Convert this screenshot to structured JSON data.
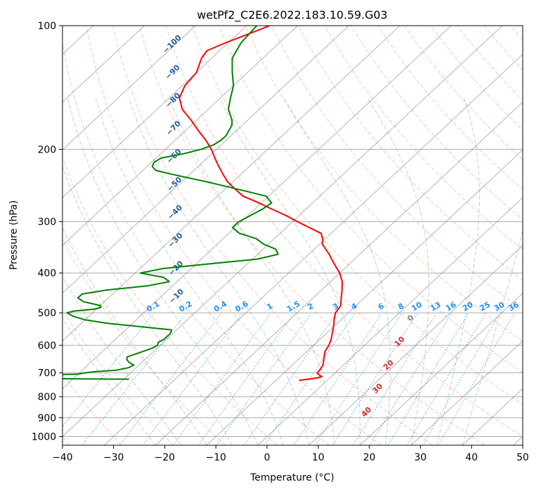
{
  "chart_data": {
    "type": "skewt",
    "title": "wetPf2_C2E6.2022.183.10.59.G03",
    "xlabel": "Temperature (°C)",
    "ylabel": "Pressure (hPa)",
    "xlim": [
      -40,
      50
    ],
    "ylim": [
      1050,
      100
    ],
    "grid": true,
    "x_ticks": [
      "−40",
      "−30",
      "−20",
      "−10",
      "0",
      "10",
      "20",
      "30",
      "40",
      "50"
    ],
    "x_tick_values": [
      -40,
      -30,
      -20,
      -10,
      0,
      10,
      20,
      30,
      40,
      50
    ],
    "y_ticks": [
      "100",
      "200",
      "300",
      "400",
      "500",
      "600",
      "700",
      "800",
      "900",
      "1000"
    ],
    "y_tick_values": [
      100,
      200,
      300,
      400,
      500,
      600,
      700,
      800,
      900,
      1000
    ],
    "series": [
      {
        "role": "temperature",
        "color": "#ff0000",
        "p": [
          730,
          725,
          720,
          715,
          710,
          700,
          690,
          680,
          670,
          660,
          650,
          640,
          620,
          600,
          580,
          560,
          540,
          520,
          500,
          480,
          460,
          440,
          420,
          400,
          390,
          380,
          370,
          360,
          340,
          330,
          320,
          310,
          300,
          290,
          280,
          270,
          260,
          250,
          240,
          230,
          220,
          210,
          200,
          190,
          180,
          170,
          160,
          150,
          140,
          130,
          120,
          115,
          110,
          105,
          100
        ],
        "t": [
          -5.5,
          -4.0,
          -2.5,
          -1.8,
          -2.5,
          -3.5,
          -3.6,
          -3.8,
          -4.0,
          -4.5,
          -5.0,
          -5.5,
          -6.5,
          -7.0,
          -7.8,
          -8.9,
          -10.0,
          -11.3,
          -12.5,
          -13.0,
          -14.5,
          -16.0,
          -17.7,
          -20.0,
          -21.5,
          -23.0,
          -24.5,
          -26.0,
          -29.5,
          -30.5,
          -32.0,
          -35.5,
          -39.0,
          -42.5,
          -46.5,
          -50.5,
          -55.0,
          -58.0,
          -61.0,
          -63.5,
          -66.0,
          -68.5,
          -71.0,
          -74.0,
          -77.5,
          -81.0,
          -85.0,
          -88.0,
          -89.5,
          -90.0,
          -92.0,
          -92.5,
          -90.5,
          -88.0,
          -85.5
        ]
      },
      {
        "role": "dewpoint",
        "color": "#008000",
        "p": [
          725,
          722,
          720,
          715,
          712,
          710,
          705,
          700,
          695,
          690,
          680,
          670,
          660,
          650,
          640,
          630,
          620,
          610,
          600,
          590,
          580,
          570,
          560,
          550,
          540,
          530,
          520,
          510,
          500,
          495,
          490,
          485,
          480,
          475,
          470,
          460,
          450,
          440,
          430,
          420,
          410,
          400,
          390,
          380,
          370,
          360,
          350,
          340,
          330,
          320,
          310,
          300,
          290,
          280,
          270,
          260,
          250,
          240,
          230,
          225,
          220,
          215,
          210,
          205,
          200,
          195,
          190,
          185,
          180,
          175,
          170,
          160,
          150,
          140,
          130,
          120,
          110,
          100
        ],
        "t": [
          -39.0,
          -63.0,
          -67.0,
          -67.0,
          -63.5,
          -62.0,
          -50.0,
          -49.0,
          -47.0,
          -43.5,
          -41.5,
          -41.0,
          -42.5,
          -43.5,
          -44.0,
          -43.0,
          -42.0,
          -41.0,
          -40.5,
          -41.0,
          -40.5,
          -40.5,
          -40.5,
          -41.0,
          -48.0,
          -55.0,
          -60.0,
          -63.0,
          -65.0,
          -64.0,
          -60.5,
          -59.5,
          -60.0,
          -62.0,
          -64.0,
          -66.0,
          -66.0,
          -62.0,
          -55.0,
          -51.5,
          -53.5,
          -59.0,
          -55.5,
          -47.5,
          -39.0,
          -36.0,
          -37.5,
          -41.0,
          -43.5,
          -48.0,
          -50.5,
          -50.5,
          -49.5,
          -48.5,
          -48.0,
          -50.5,
          -57.5,
          -65.0,
          -73.5,
          -77.5,
          -79.0,
          -79.5,
          -79.0,
          -75.5,
          -73.0,
          -71.5,
          -71.0,
          -71.0,
          -71.5,
          -72.0,
          -73.0,
          -76.0,
          -78.0,
          -80.0,
          -83.0,
          -86.0,
          -87.5,
          -88.0
        ]
      }
    ],
    "dry_adiabat_labels": [],
    "moist_adiabat_labels": [
      "−100",
      "−90",
      "−80",
      "−70",
      "−60",
      "−50",
      "−40",
      "−30",
      "−20",
      "−10",
      "0",
      "10",
      "20",
      "30",
      "40"
    ],
    "mixing_ratio_labels": [
      "0.1",
      "0.2",
      "0.4",
      "0.6",
      "1",
      "1.5",
      "2",
      "3",
      "4",
      "6",
      "8",
      "10",
      "13",
      "16",
      "20",
      "25",
      "30",
      "36"
    ],
    "colors": {
      "temperature": "#ff0000",
      "dewpoint": "#008000",
      "isotherm": "#808080",
      "isobar": "#a9a9a9",
      "dry_adiabat": "#ff7f50",
      "moist_adiabat": "#2e8b57",
      "mixing_ratio": "#1e90ff",
      "moist_label": "#1f5f9e",
      "dry_label": "#d62728"
    }
  }
}
